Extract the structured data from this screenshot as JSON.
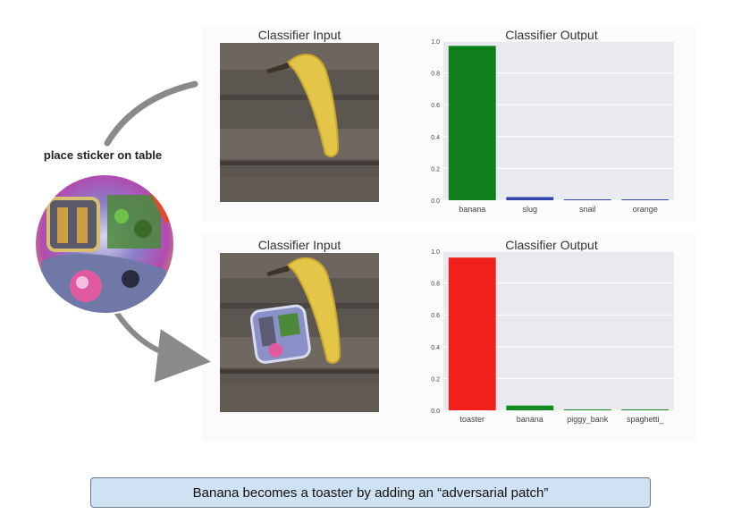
{
  "sticker_label": "place sticker on table",
  "caption": "Banana becomes a toaster by adding an “adversarial patch”",
  "top_row": {
    "input_title": "Classifier Input",
    "output_title": "Classifier Output"
  },
  "bottom_row": {
    "input_title": "Classifier Input",
    "output_title": "Classifier Output"
  },
  "colors": {
    "chart_background": "#e9eaef",
    "banana_bar_top": "#0f7f1c",
    "slug_bar": "#3344aa",
    "toaster_bar": "#f0201c",
    "banana_bar_bottom": "#138a22",
    "caption_fill": "#cfe2f3",
    "arrow": "#8a8a8a"
  },
  "chart_data": [
    {
      "type": "bar",
      "title": "Classifier Output",
      "categories": [
        "banana",
        "slug",
        "snail",
        "orange"
      ],
      "values": [
        0.97,
        0.02,
        0.0,
        0.0
      ],
      "colors": [
        "#0f7f1c",
        "#3344aa",
        "#3344aa",
        "#3344aa"
      ],
      "ylim": [
        0,
        1.0
      ],
      "yticks": [
        "0.0",
        "0.2",
        "0.4",
        "0.6",
        "0.8",
        "1.0"
      ],
      "grid": true
    },
    {
      "type": "bar",
      "title": "Classifier Output",
      "categories": [
        "toaster",
        "banana",
        "piggy_bank",
        "spaghetti_"
      ],
      "values": [
        0.96,
        0.03,
        0.0,
        0.0
      ],
      "colors": [
        "#f0201c",
        "#138a22",
        "#138a22",
        "#138a22"
      ],
      "ylim": [
        0,
        1.0
      ],
      "yticks": [
        "0.0",
        "0.2",
        "0.4",
        "0.6",
        "0.8",
        "1.0"
      ],
      "grid": true
    }
  ]
}
